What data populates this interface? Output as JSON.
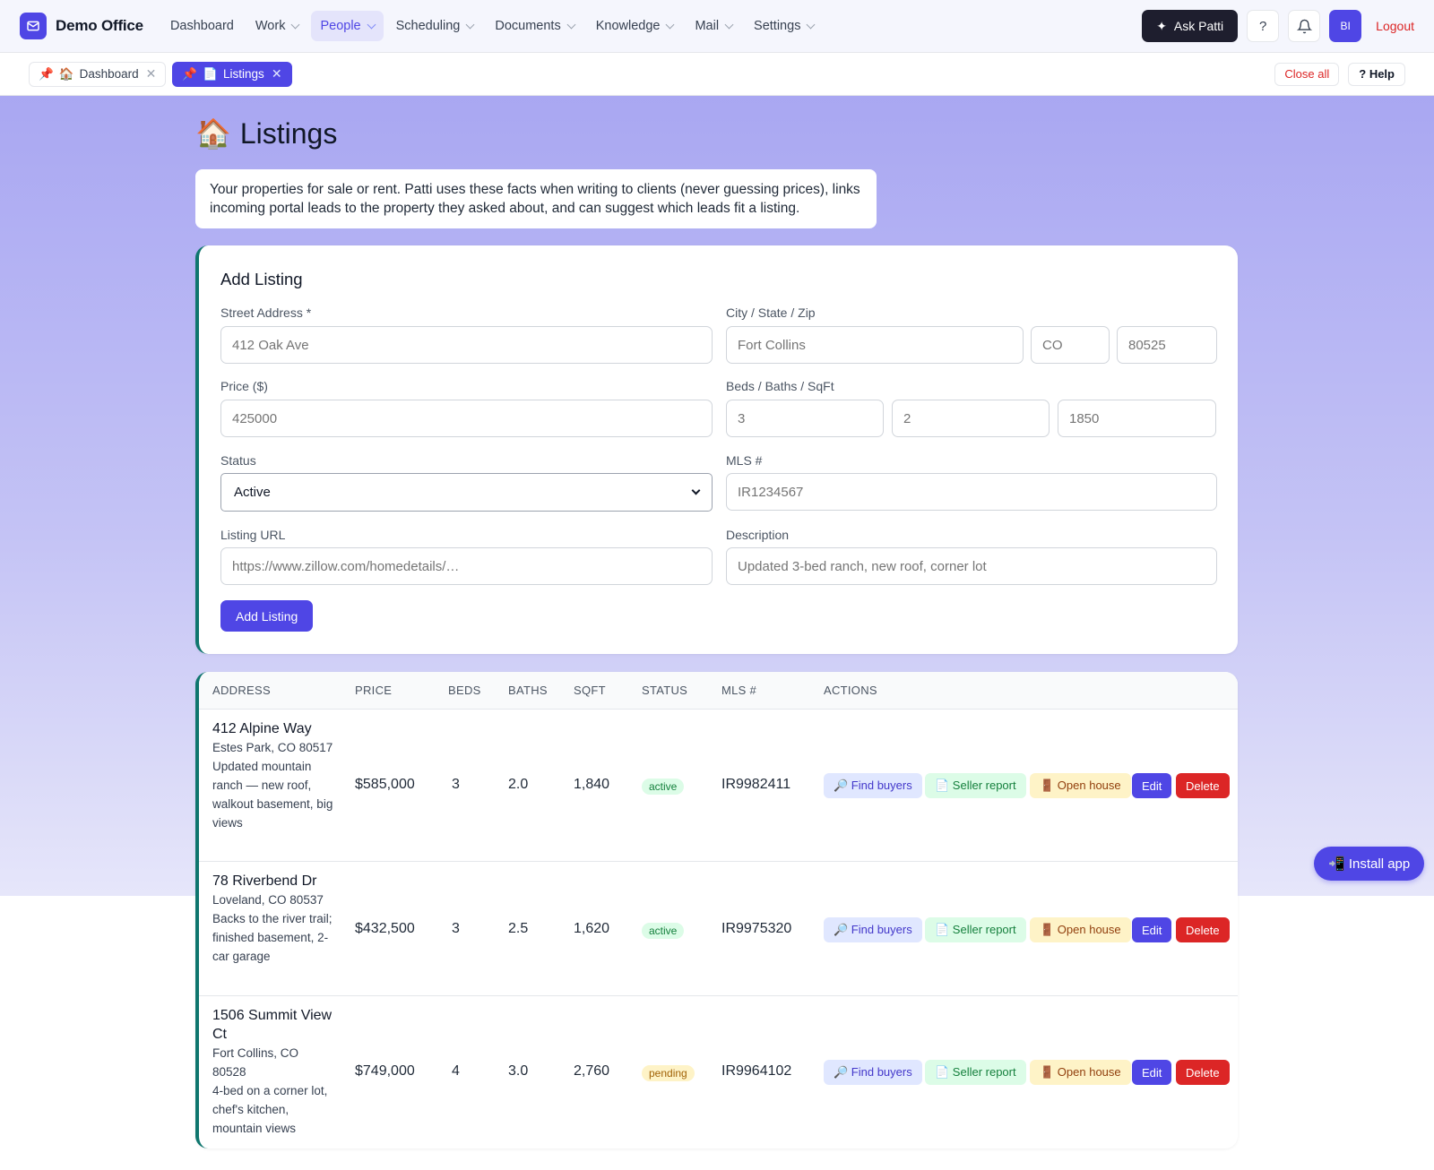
{
  "app": {
    "name": "Demo Office",
    "colors": {
      "brand": "#4f46e5",
      "accent_border": "#0f766e",
      "danger": "#dc2626"
    }
  },
  "nav": {
    "items": [
      {
        "label": "Dashboard",
        "dropdown": false,
        "active": false
      },
      {
        "label": "Work",
        "dropdown": true,
        "active": false
      },
      {
        "label": "People",
        "dropdown": true,
        "active": true
      },
      {
        "label": "Scheduling",
        "dropdown": true,
        "active": false
      },
      {
        "label": "Documents",
        "dropdown": true,
        "active": false
      },
      {
        "label": "Knowledge",
        "dropdown": true,
        "active": false
      },
      {
        "label": "Mail",
        "dropdown": true,
        "active": false
      },
      {
        "label": "Settings",
        "dropdown": true,
        "active": false
      }
    ],
    "ask_label": "Ask Patti",
    "help_glyph": "?",
    "avatar_initials": "BI",
    "logout_label": "Logout"
  },
  "tabs": {
    "items": [
      {
        "pin": "📌",
        "icon": "🏠",
        "label": "Dashboard",
        "close": "✕",
        "active": false
      },
      {
        "pin": "📌",
        "icon": "📄",
        "label": "Listings",
        "close": "✕",
        "active": true
      }
    ],
    "close_all_label": "Close all",
    "help_label": "? Help"
  },
  "page": {
    "icon": "🏠",
    "title": "Listings",
    "intro": "Your properties for sale or rent. Patti uses these facts when writing to clients (never guessing prices), links incoming portal leads to the property they asked about, and can suggest which leads fit a listing."
  },
  "form": {
    "title": "Add Listing",
    "street_label": "Street Address *",
    "street_placeholder": "412 Oak Ave",
    "city_label": "City / State / Zip",
    "city_placeholder": "Fort Collins",
    "state_placeholder": "CO",
    "zip_placeholder": "80525",
    "price_label": "Price ($)",
    "price_placeholder": "425000",
    "bbs_label": "Beds / Baths / SqFt",
    "beds_placeholder": "3",
    "baths_placeholder": "2",
    "sqft_placeholder": "1850",
    "status_label": "Status",
    "status_value": "Active",
    "mls_label": "MLS #",
    "mls_placeholder": "IR1234567",
    "url_label": "Listing URL",
    "url_placeholder": "https://www.zillow.com/homedetails/…",
    "desc_label": "Description",
    "desc_placeholder": "Updated 3-bed ranch, new roof, corner lot",
    "submit_label": "Add Listing"
  },
  "table": {
    "headers": [
      "ADDRESS",
      "PRICE",
      "BEDS",
      "BATHS",
      "SQFT",
      "STATUS",
      "MLS #",
      "ACTIONS"
    ],
    "action_labels": {
      "find": "🔎 Find buyers",
      "seller": "📄 Seller report",
      "open": "🚪 Open house",
      "edit": "Edit",
      "delete": "Delete"
    },
    "rows": [
      {
        "street": "412 Alpine Way",
        "city": "Estes Park, CO 80517",
        "desc": "Updated mountain ranch — new roof, walkout basement, big views",
        "price": "$585,000",
        "beds": "3",
        "baths": "2.0",
        "sqft": "1,840",
        "status": "active",
        "mls": "IR9982411"
      },
      {
        "street": "78 Riverbend Dr",
        "city": "Loveland, CO 80537",
        "desc": "Backs to the river trail; finished basement, 2-car garage",
        "price": "$432,500",
        "beds": "3",
        "baths": "2.5",
        "sqft": "1,620",
        "status": "active",
        "mls": "IR9975320"
      },
      {
        "street": "1506 Summit View Ct",
        "city": "Fort Collins, CO 80528",
        "desc": "4-bed on a corner lot, chef's kitchen, mountain views",
        "price": "$749,000",
        "beds": "4",
        "baths": "3.0",
        "sqft": "2,760",
        "status": "pending",
        "mls": "IR9964102"
      }
    ]
  },
  "install_label": "📲 Install app"
}
